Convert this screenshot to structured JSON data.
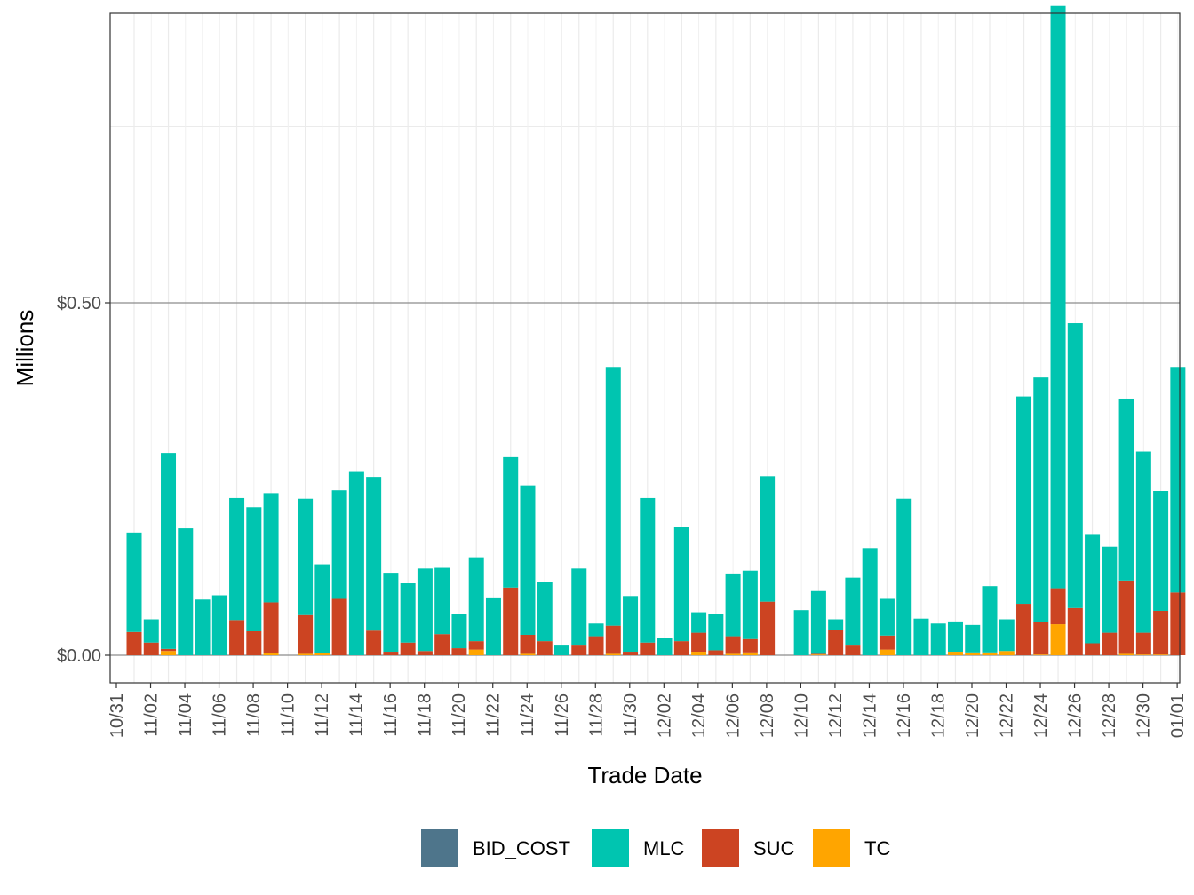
{
  "chart_data": {
    "type": "bar",
    "stacked": true,
    "xlabel": "Trade Date",
    "ylabel": "Millions",
    "y_tick_labels": [
      "$0.00",
      "$0.50"
    ],
    "y_ticks": [
      0,
      0.5
    ],
    "ylim": [
      -0.04,
      0.91
    ],
    "x_tick_labels": [
      "10/31",
      "11/02",
      "11/04",
      "11/06",
      "11/08",
      "11/10",
      "11/12",
      "11/14",
      "11/16",
      "11/18",
      "11/20",
      "11/22",
      "11/24",
      "11/26",
      "11/28",
      "11/30",
      "12/02",
      "12/04",
      "12/06",
      "12/08",
      "12/10",
      "12/12",
      "12/14",
      "12/16",
      "12/18",
      "12/20",
      "12/22",
      "12/24",
      "12/26",
      "12/28",
      "12/30",
      "01/01"
    ],
    "grid": true,
    "legend_position": "bottom",
    "categories": [
      "10/31",
      "11/01",
      "11/02",
      "11/03",
      "11/04",
      "11/05",
      "11/06",
      "11/07",
      "11/08",
      "11/09",
      "11/10",
      "11/11",
      "11/12",
      "11/13",
      "11/14",
      "11/15",
      "11/16",
      "11/17",
      "11/18",
      "11/19",
      "11/20",
      "11/21",
      "11/22",
      "11/23",
      "11/24",
      "11/25",
      "11/26",
      "11/27",
      "11/28",
      "11/29",
      "11/30",
      "12/01",
      "12/02",
      "12/03",
      "12/04",
      "12/05",
      "12/06",
      "12/07",
      "12/08",
      "12/09",
      "12/10",
      "12/11",
      "12/12",
      "12/13",
      "12/14",
      "12/15",
      "12/16",
      "12/17",
      "12/18",
      "12/19",
      "12/20",
      "12/21",
      "12/22",
      "12/23",
      "12/24",
      "12/25",
      "12/26",
      "12/27",
      "12/28",
      "12/29",
      "12/30",
      "12/31"
    ],
    "series": [
      {
        "name": "BID_COST",
        "color": "#4e758b",
        "values": [
          0,
          0,
          0,
          0,
          0,
          0,
          0,
          0,
          0,
          0,
          0,
          0,
          0,
          0,
          0,
          0,
          0,
          0,
          0,
          0,
          0,
          0,
          0,
          0,
          0,
          0,
          0,
          0,
          0,
          0,
          0,
          0,
          0,
          0,
          0,
          0,
          0,
          0,
          0,
          0,
          0,
          0,
          0,
          0,
          0,
          0,
          0,
          0,
          0,
          0,
          0,
          0,
          0,
          0,
          0,
          0,
          0,
          0,
          0,
          0,
          0,
          0
        ]
      },
      {
        "name": "TC",
        "color": "#ffa500",
        "values": [
          0,
          0,
          0.006,
          0,
          0,
          0,
          0,
          0,
          0.003,
          0,
          0.002,
          0.003,
          0,
          0,
          0,
          0,
          0,
          0,
          0,
          0,
          0.008,
          0,
          0,
          0.002,
          0,
          0,
          0,
          0,
          0.002,
          0,
          0,
          0,
          0,
          0.005,
          0,
          0.002,
          0.004,
          0,
          0,
          0,
          0.001,
          0,
          0,
          0,
          0.008,
          0,
          0,
          0,
          0.005,
          0.004,
          0.004,
          0.006,
          0,
          0.001,
          0.044,
          0,
          0,
          0,
          0.002,
          0.001,
          0.001,
          0
        ]
      },
      {
        "name": "SUC",
        "color": "#cc4422",
        "values": [
          0.033,
          0.018,
          0.003,
          0,
          0,
          0,
          0.05,
          0.034,
          0.072,
          0,
          0.055,
          0,
          0.08,
          0,
          0.035,
          0.005,
          0.018,
          0.006,
          0.03,
          0.01,
          0.012,
          0,
          0.096,
          0.027,
          0.02,
          0,
          0.015,
          0.027,
          0.04,
          0.005,
          0.018,
          0,
          0.02,
          0.027,
          0.007,
          0.025,
          0.019,
          0.076,
          0,
          0,
          0.001,
          0.036,
          0.015,
          0,
          0.02,
          0,
          0,
          0,
          0,
          0,
          0,
          0,
          0.073,
          0.046,
          0.051,
          0.067,
          0.017,
          0.032,
          0.104,
          0.031,
          0.062,
          0.089
        ]
      },
      {
        "name": "MLC",
        "color": "#00c5b0",
        "values": [
          0.141,
          0.033,
          0.278,
          0.18,
          0.079,
          0.085,
          0.173,
          0.176,
          0.155,
          0,
          0.165,
          0.126,
          0.154,
          0.26,
          0.218,
          0.112,
          0.084,
          0.117,
          0.094,
          0.048,
          0.119,
          0.082,
          0.185,
          0.212,
          0.084,
          0.015,
          0.108,
          0.018,
          0.367,
          0.079,
          0.205,
          0.025,
          0.162,
          0.029,
          0.052,
          0.089,
          0.097,
          0.178,
          0,
          0.064,
          0.089,
          0.015,
          0.095,
          0.152,
          0.052,
          0.222,
          0.052,
          0.045,
          0.043,
          0.039,
          0.094,
          0.045,
          0.294,
          0.347,
          0.826,
          0.404,
          0.155,
          0.122,
          0.258,
          0.257,
          0.17,
          0.32
        ]
      }
    ],
    "legend": [
      {
        "name": "BID_COST",
        "color": "#4e758b"
      },
      {
        "name": "MLC",
        "color": "#00c5b0"
      },
      {
        "name": "SUC",
        "color": "#cc4422"
      },
      {
        "name": "TC",
        "color": "#ffa500"
      }
    ]
  }
}
